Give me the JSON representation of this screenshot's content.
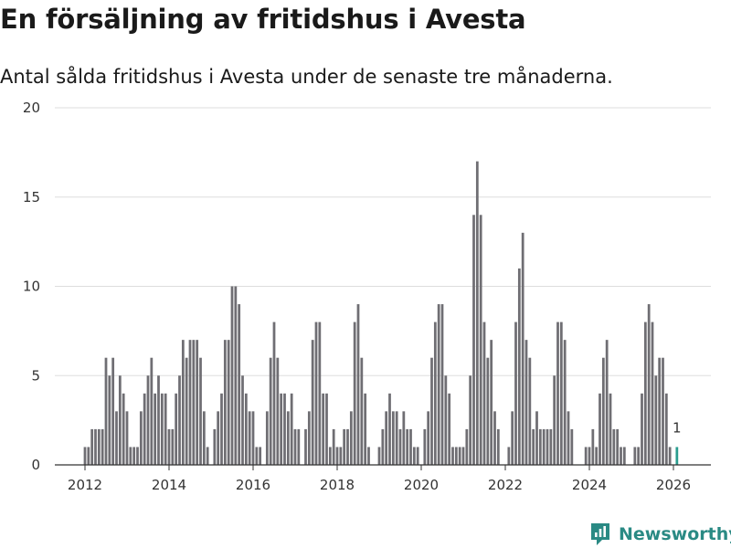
{
  "header": {
    "title": "En försäljning av fritidshus i Avesta",
    "subtitle": "Antal sålda fritidshus i Avesta under de senaste tre månaderna."
  },
  "brand": {
    "name": "Newsworthy",
    "icon": "newsworthy-logo-icon",
    "color": "#2a8a84"
  },
  "colors": {
    "bar": "#6f6e73",
    "highlight": "#2a9d8f",
    "grid": "#dddddd",
    "axis": "#333333"
  },
  "chart_data": {
    "type": "bar",
    "title": "En försäljning av fritidshus i Avesta",
    "xlabel": "",
    "ylabel": "",
    "ylim": [
      0,
      20
    ],
    "yticks": [
      0,
      5,
      10,
      15,
      20
    ],
    "xticks": [
      2012,
      2014,
      2016,
      2018,
      2020,
      2022,
      2024,
      2026
    ],
    "start": {
      "year": 2012,
      "month": 1
    },
    "values": [
      1,
      1,
      2,
      2,
      2,
      2,
      6,
      5,
      6,
      3,
      5,
      4,
      3,
      1,
      1,
      1,
      3,
      4,
      5,
      6,
      4,
      5,
      4,
      4,
      2,
      2,
      4,
      5,
      7,
      6,
      7,
      7,
      7,
      6,
      3,
      1,
      0,
      2,
      3,
      4,
      7,
      7,
      10,
      10,
      9,
      5,
      4,
      3,
      3,
      1,
      1,
      0,
      3,
      6,
      8,
      6,
      4,
      4,
      3,
      4,
      2,
      2,
      0,
      2,
      3,
      7,
      8,
      8,
      4,
      4,
      1,
      2,
      1,
      1,
      2,
      2,
      3,
      8,
      9,
      6,
      4,
      1,
      0,
      0,
      1,
      2,
      3,
      4,
      3,
      3,
      2,
      3,
      2,
      2,
      1,
      1,
      0,
      2,
      3,
      6,
      8,
      9,
      9,
      5,
      4,
      1,
      1,
      1,
      1,
      2,
      5,
      14,
      17,
      14,
      8,
      6,
      7,
      3,
      2,
      0,
      0,
      1,
      3,
      8,
      11,
      13,
      7,
      6,
      2,
      3,
      2,
      2,
      2,
      2,
      5,
      8,
      8,
      7,
      3,
      2,
      0,
      0,
      0,
      1,
      1,
      2,
      1,
      4,
      6,
      7,
      4,
      2,
      2,
      1,
      1,
      0,
      0,
      1,
      1,
      4,
      8,
      9,
      8,
      5,
      6,
      6,
      4,
      1,
      0,
      1
    ],
    "highlight": {
      "label": "1",
      "value": 1,
      "index": 169
    }
  }
}
